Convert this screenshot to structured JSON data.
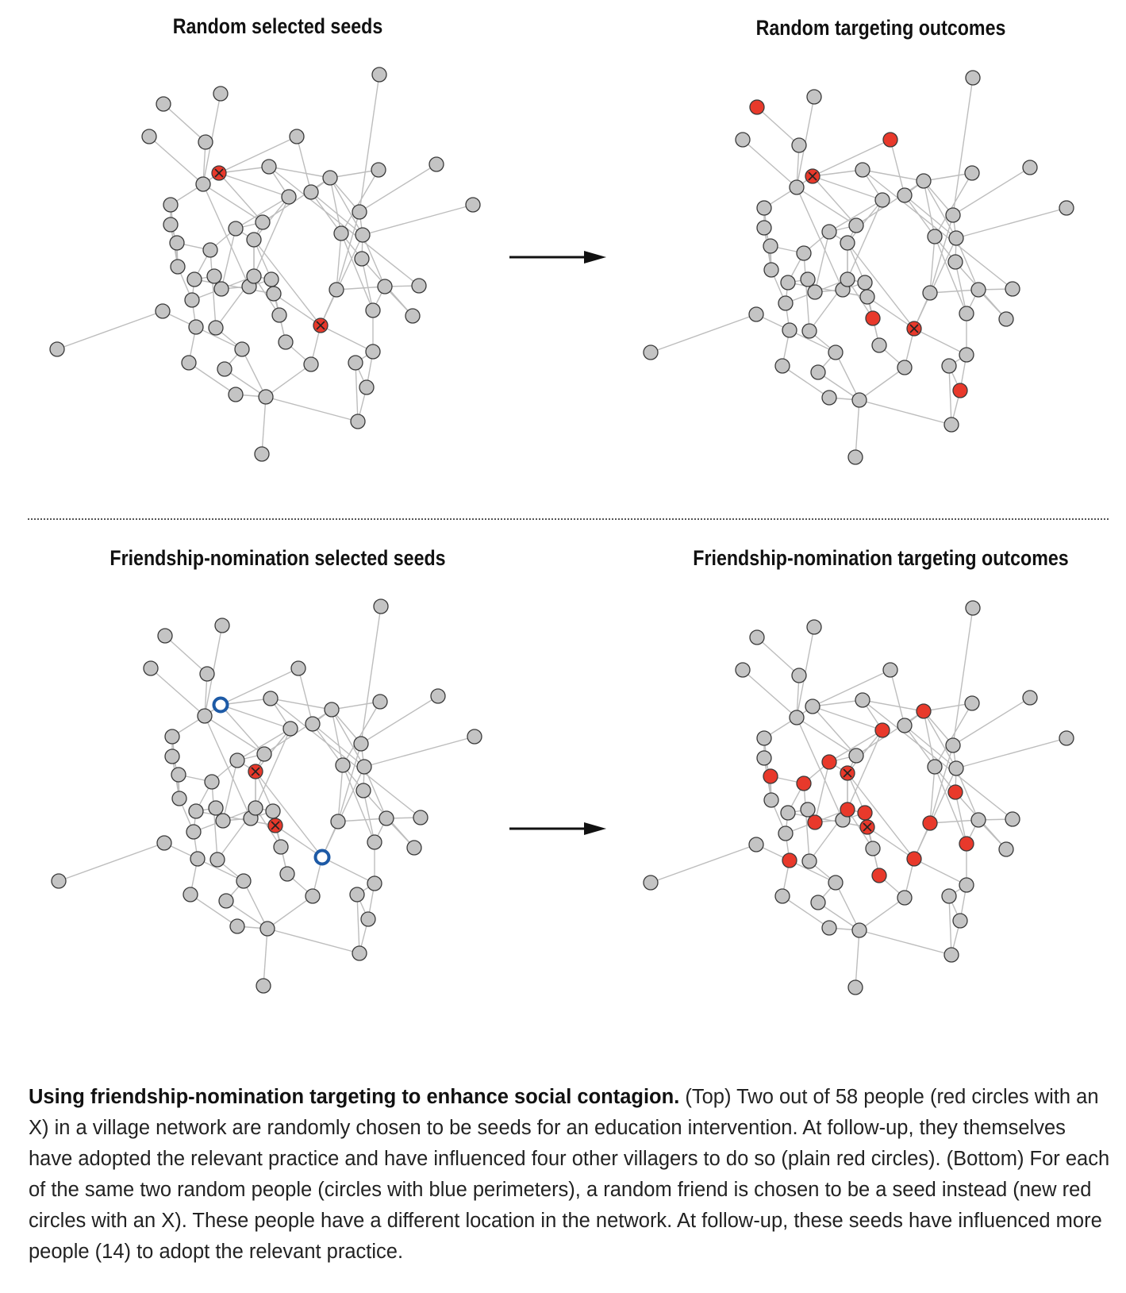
{
  "panels": {
    "top_left": {
      "title": "Random selected seeds"
    },
    "top_right": {
      "title": "Random targeting outcomes"
    },
    "bottom_left": {
      "title": "Friendship-nomination selected seeds"
    },
    "bottom_right": {
      "title": "Friendship-nomination targeting outcomes"
    }
  },
  "caption": {
    "bold": "Using friendship-nomination targeting to enhance social contagion.",
    "text": " (Top) Two out of 58 people (red circles with an X) in a village network are randomly chosen to be seeds for an education intervention. At follow-up, they themselves have adopted the relevant practice and have influenced four other villagers to do so (plain red circles). (Bottom) For each of the same two random people (circles with blue perimeters), a random friend is chosen to be a seed instead (new red circles with an X). These people have a different location in the network. At follow-up, these seeds have influenced more people (14) to adopt the relevant practice."
  },
  "colors": {
    "node_fill": "#c4c4c4",
    "node_stroke": "#3a3a3a",
    "adopter_fill": "#e8392b",
    "blue_perimeter": "#1d5aa6",
    "edge": "#bdbdbd",
    "arrow": "#111111"
  }
}
